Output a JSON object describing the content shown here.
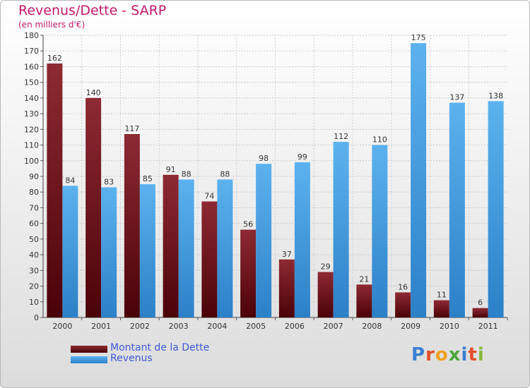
{
  "chart_data": {
    "type": "bar",
    "title": "Revenus/Dette - SARP",
    "subtitle": "(en milliers d'€)",
    "categories": [
      "2000",
      "2001",
      "2002",
      "2003",
      "2004",
      "2005",
      "2006",
      "2007",
      "2008",
      "2009",
      "2010",
      "2011"
    ],
    "series": [
      {
        "name": "Montant de la Dette",
        "color": "#7a1a24",
        "values": [
          162,
          140,
          117,
          91,
          74,
          56,
          37,
          29,
          21,
          16,
          11,
          6
        ]
      },
      {
        "name": "Revenus",
        "color": "#4aa3e4",
        "values": [
          84,
          83,
          85,
          88,
          88,
          98,
          99,
          112,
          110,
          175,
          137,
          138
        ]
      }
    ],
    "ylim": [
      0,
      180
    ],
    "yticks": [
      0,
      10,
      20,
      30,
      40,
      50,
      60,
      70,
      80,
      90,
      100,
      110,
      120,
      130,
      140,
      150,
      160,
      170,
      180
    ],
    "grid": true,
    "legend_position": "bottom-left"
  },
  "logo": {
    "text": [
      "P",
      "r",
      "o",
      "x",
      "i",
      "t",
      "i"
    ]
  }
}
